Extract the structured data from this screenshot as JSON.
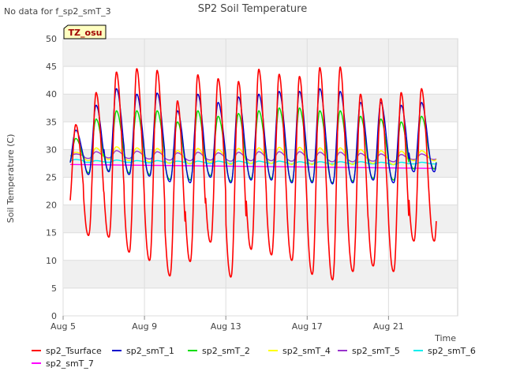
{
  "corner_note": "No data for f_sp2_smT_3",
  "chart_data": {
    "type": "line",
    "title": "SP2 Soil Temperature",
    "xlabel": "Time",
    "ylabel": "Soil Temperature (C)",
    "ylim": [
      0,
      50
    ],
    "xlim_day": [
      5,
      23
    ],
    "yticks": [
      0,
      5,
      10,
      15,
      20,
      25,
      30,
      35,
      40,
      45,
      50
    ],
    "xticks": [
      {
        "day": 5,
        "label": "Aug 5"
      },
      {
        "day": 9,
        "label": "Aug 9"
      },
      {
        "day": 13,
        "label": "Aug 13"
      },
      {
        "day": 17,
        "label": "Aug 17"
      },
      {
        "day": 21,
        "label": "Aug 21"
      }
    ],
    "grid": true,
    "legend_position": "bottom",
    "badge": "TZ_osu",
    "series": [
      {
        "name": "sp2_Tsurface",
        "color": "#ff0000",
        "daily_max": [
          34.5,
          40.3,
          44.0,
          44.6,
          44.3,
          38.8,
          43.5,
          42.8,
          42.3,
          44.5,
          43.6,
          43.2,
          44.8,
          44.9,
          40.0,
          39.2,
          40.3,
          41.0
        ],
        "daily_min": [
          18.8,
          14.5,
          14.2,
          11.5,
          10.0,
          7.2,
          9.8,
          13.3,
          7.0,
          12.0,
          11.0,
          10.0,
          7.5,
          6.5,
          8.0,
          9.0,
          8.0,
          13.5
        ]
      },
      {
        "name": "sp2_smT_1",
        "color": "#0000cc",
        "daily_max": [
          33.5,
          38.0,
          41.0,
          40.0,
          40.2,
          37.0,
          40.0,
          38.5,
          39.5,
          40.0,
          40.5,
          40.5,
          41.0,
          40.5,
          38.5,
          38.5,
          38.0,
          38.5
        ],
        "daily_min": [
          26.8,
          25.5,
          26.0,
          25.5,
          25.2,
          24.2,
          24.0,
          25.0,
          24.0,
          24.5,
          24.5,
          24.0,
          24.0,
          23.8,
          24.0,
          24.5,
          24.0,
          26.0
        ]
      },
      {
        "name": "sp2_smT_2",
        "color": "#00dd00",
        "daily_max": [
          32.0,
          35.5,
          37.0,
          37.0,
          37.0,
          35.0,
          37.0,
          36.0,
          36.5,
          37.0,
          37.5,
          37.5,
          37.0,
          37.0,
          36.0,
          35.5,
          35.0,
          36.0
        ],
        "daily_min": [
          27.0,
          25.8,
          26.2,
          25.8,
          25.5,
          24.6,
          24.5,
          25.3,
          24.3,
          24.8,
          24.8,
          24.3,
          24.3,
          24.0,
          24.3,
          24.8,
          24.5,
          26.5
        ]
      },
      {
        "name": "sp2_smT_4",
        "color": "#ffff00",
        "daily_max": [
          29.5,
          30.3,
          30.5,
          30.3,
          30.2,
          29.8,
          30.2,
          30.0,
          30.2,
          30.3,
          30.4,
          30.4,
          30.3,
          30.3,
          30.0,
          29.8,
          29.7,
          29.8
        ],
        "daily_min": [
          28.8,
          28.0,
          28.2,
          28.0,
          27.8,
          27.5,
          27.4,
          27.7,
          27.3,
          27.5,
          27.5,
          27.3,
          27.3,
          27.2,
          27.3,
          27.5,
          27.3,
          28.0
        ]
      },
      {
        "name": "sp2_smT_5",
        "color": "#9933cc",
        "daily_max": [
          29.2,
          29.6,
          29.8,
          29.7,
          29.6,
          29.4,
          29.5,
          29.4,
          29.5,
          29.6,
          29.6,
          29.6,
          29.5,
          29.5,
          29.3,
          29.2,
          29.1,
          29.2
        ],
        "daily_min": [
          28.8,
          28.4,
          28.5,
          28.4,
          28.3,
          28.1,
          28.0,
          28.1,
          27.9,
          28.0,
          28.0,
          27.9,
          27.9,
          27.8,
          27.8,
          27.9,
          27.8,
          28.2
        ]
      },
      {
        "name": "sp2_smT_6",
        "color": "#00eeee",
        "daily_max": [
          28.2,
          28.0,
          28.1,
          28.0,
          28.0,
          27.9,
          27.9,
          27.9,
          27.9,
          27.9,
          27.9,
          27.8,
          27.8,
          27.8,
          27.8,
          27.7,
          27.7,
          27.7
        ],
        "daily_min": [
          27.9,
          27.7,
          27.7,
          27.7,
          27.6,
          27.6,
          27.5,
          27.5,
          27.5,
          27.5,
          27.5,
          27.4,
          27.4,
          27.4,
          27.4,
          27.4,
          27.3,
          27.4
        ]
      },
      {
        "name": "sp2_smT_7",
        "color": "#ff00ff",
        "start_value": 27.3,
        "end_value": 26.6
      }
    ]
  },
  "legend": [
    {
      "label": "sp2_Tsurface",
      "color": "#ff0000"
    },
    {
      "label": "sp2_smT_1",
      "color": "#0000cc"
    },
    {
      "label": "sp2_smT_2",
      "color": "#00dd00"
    },
    {
      "label": "sp2_smT_4",
      "color": "#ffff00"
    },
    {
      "label": "sp2_smT_5",
      "color": "#9933cc"
    },
    {
      "label": "sp2_smT_6",
      "color": "#00eeee"
    },
    {
      "label": "sp2_smT_7",
      "color": "#ff00ff"
    }
  ]
}
